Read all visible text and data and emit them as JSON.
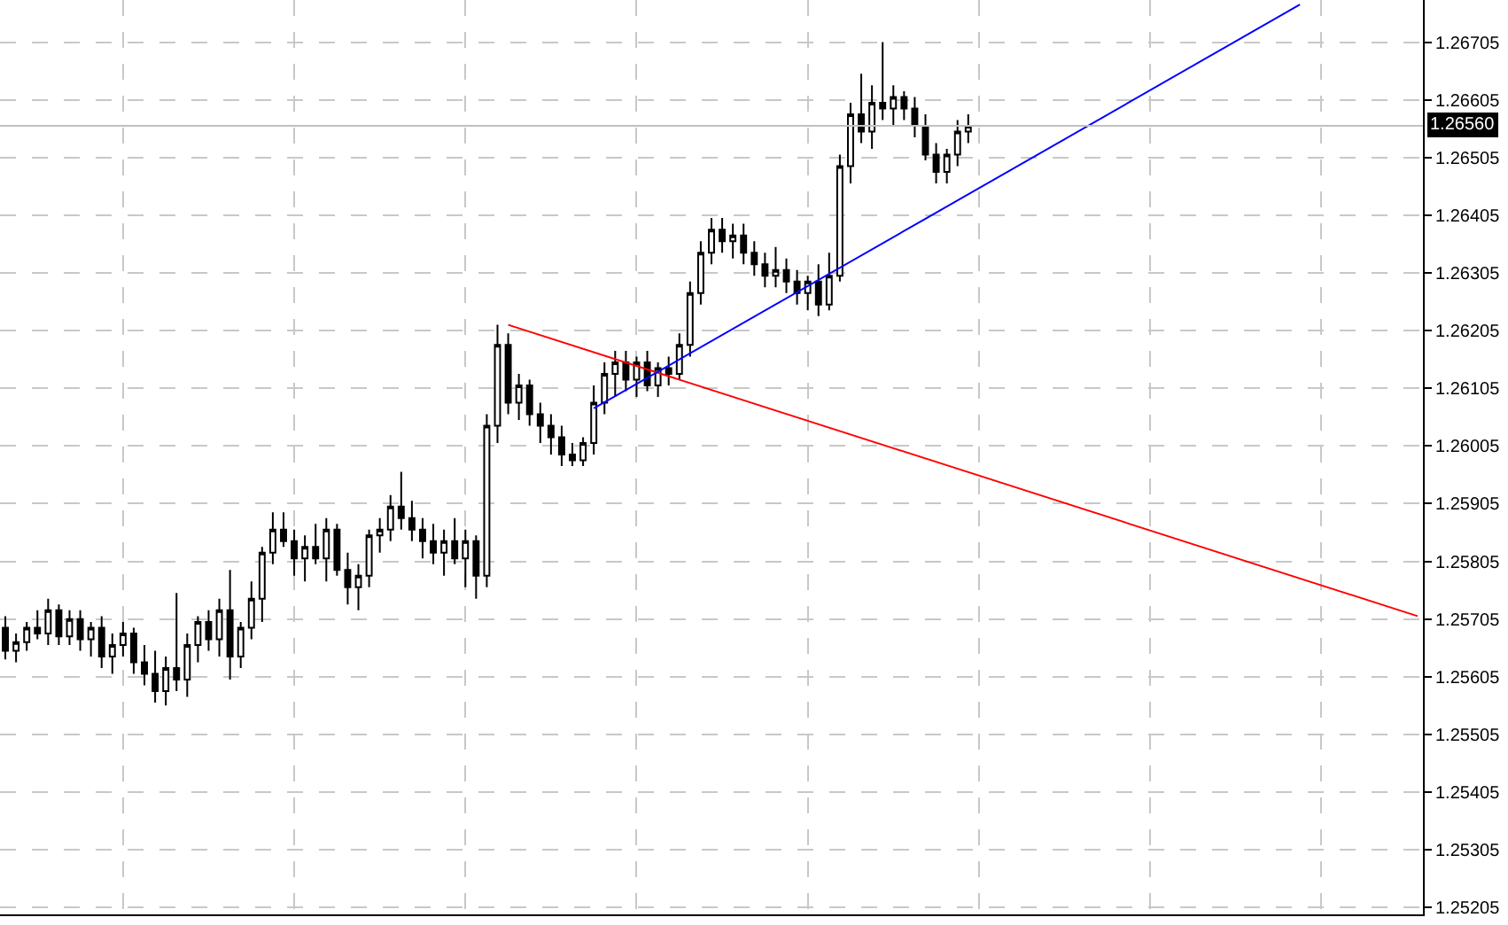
{
  "chart_data": {
    "type": "candlestick",
    "categories": [
      null,
      null,
      null,
      null,
      null,
      null,
      null,
      null,
      null,
      null,
      null,
      null,
      null,
      null,
      null,
      null,
      null,
      null,
      null,
      null,
      null,
      null,
      null,
      null,
      null,
      null,
      null,
      null,
      null,
      null,
      null,
      null,
      null,
      null,
      null,
      null,
      null,
      null,
      null,
      null,
      null,
      null,
      null,
      null,
      null,
      null,
      null,
      null,
      null,
      null,
      null,
      null,
      null,
      null,
      null,
      null,
      null,
      null,
      null,
      null,
      null,
      null,
      null,
      null,
      null,
      null,
      null,
      null,
      null,
      null,
      null,
      null,
      null,
      null,
      null,
      null,
      null,
      null,
      null,
      null,
      null,
      null,
      null,
      null,
      null,
      null,
      null,
      null,
      null,
      null,
      null,
      null,
      null,
      null,
      null,
      null,
      null,
      null,
      null,
      null,
      null,
      null,
      null,
      null,
      null,
      null,
      null,
      null,
      null,
      null,
      null,
      null,
      null,
      null,
      null,
      null,
      null,
      null,
      null,
      null,
      null,
      null,
      null,
      null,
      null,
      null,
      null,
      null,
      null,
      null,
      null,
      null,
      null
    ],
    "ohlc": [
      [
        1.2569,
        1.2571,
        1.25635,
        1.2565
      ],
      [
        1.2565,
        1.2568,
        1.2563,
        1.25665
      ],
      [
        1.25665,
        1.257,
        1.2565,
        1.2569
      ],
      [
        1.2569,
        1.2572,
        1.2567,
        1.2568
      ],
      [
        1.2568,
        1.2574,
        1.2566,
        1.2572
      ],
      [
        1.2572,
        1.2573,
        1.2566,
        1.25675
      ],
      [
        1.25675,
        1.2572,
        1.2566,
        1.25705
      ],
      [
        1.25705,
        1.2572,
        1.2565,
        1.2567
      ],
      [
        1.2567,
        1.257,
        1.2564,
        1.2569
      ],
      [
        1.2569,
        1.2571,
        1.2562,
        1.2564
      ],
      [
        1.2564,
        1.2568,
        1.2561,
        1.2566
      ],
      [
        1.2566,
        1.257,
        1.2564,
        1.2568
      ],
      [
        1.2568,
        1.2569,
        1.2561,
        1.2563
      ],
      [
        1.2563,
        1.2566,
        1.2559,
        1.2561
      ],
      [
        1.2561,
        1.2565,
        1.2556,
        1.2558
      ],
      [
        1.2558,
        1.2564,
        1.25555,
        1.2562
      ],
      [
        1.2562,
        1.2575,
        1.2558,
        1.256
      ],
      [
        1.256,
        1.2568,
        1.2557,
        1.2566
      ],
      [
        1.2566,
        1.2571,
        1.2563,
        1.257
      ],
      [
        1.257,
        1.2572,
        1.2565,
        1.2567
      ],
      [
        1.2567,
        1.2574,
        1.2564,
        1.2572
      ],
      [
        1.2572,
        1.2579,
        1.256,
        1.2564
      ],
      [
        1.2564,
        1.257,
        1.2562,
        1.2569
      ],
      [
        1.2569,
        1.2577,
        1.2567,
        1.2574
      ],
      [
        1.2574,
        1.2583,
        1.257,
        1.2582
      ],
      [
        1.2582,
        1.2589,
        1.258,
        1.2586
      ],
      [
        1.2586,
        1.2589,
        1.2583,
        1.2584
      ],
      [
        1.2584,
        1.2586,
        1.2578,
        1.2581
      ],
      [
        1.2581,
        1.2585,
        1.2577,
        1.2583
      ],
      [
        1.2583,
        1.2587,
        1.258,
        1.2581
      ],
      [
        1.2581,
        1.2588,
        1.2577,
        1.2586
      ],
      [
        1.2586,
        1.2587,
        1.2578,
        1.2579
      ],
      [
        1.2579,
        1.2582,
        1.2573,
        1.2576
      ],
      [
        1.2576,
        1.258,
        1.2572,
        1.2578
      ],
      [
        1.2578,
        1.2586,
        1.2576,
        1.2585
      ],
      [
        1.2585,
        1.2588,
        1.2582,
        1.2586
      ],
      [
        1.2586,
        1.2592,
        1.2584,
        1.259
      ],
      [
        1.259,
        1.2596,
        1.2586,
        1.2588
      ],
      [
        1.2588,
        1.2591,
        1.2584,
        1.2586
      ],
      [
        1.2586,
        1.2588,
        1.2581,
        1.2584
      ],
      [
        1.2584,
        1.2587,
        1.258,
        1.2582
      ],
      [
        1.2582,
        1.2586,
        1.2578,
        1.2584
      ],
      [
        1.2584,
        1.2588,
        1.258,
        1.2581
      ],
      [
        1.2581,
        1.2586,
        1.2576,
        1.2584
      ],
      [
        1.2584,
        1.2585,
        1.2574,
        1.2578
      ],
      [
        1.2578,
        1.2606,
        1.2576,
        1.2604
      ],
      [
        1.2604,
        1.26215,
        1.2601,
        1.2618
      ],
      [
        1.2618,
        1.262,
        1.2606,
        1.2608
      ],
      [
        1.2608,
        1.2613,
        1.2605,
        1.2611
      ],
      [
        1.2611,
        1.2612,
        1.2604,
        1.2606
      ],
      [
        1.2606,
        1.2608,
        1.2601,
        1.2604
      ],
      [
        1.2604,
        1.2606,
        1.2599,
        1.2602
      ],
      [
        1.2602,
        1.2604,
        1.2597,
        1.2599
      ],
      [
        1.2599,
        1.2601,
        1.2597,
        1.2598
      ],
      [
        1.2598,
        1.2602,
        1.2597,
        1.2601
      ],
      [
        1.2601,
        1.2611,
        1.2599,
        1.2608
      ],
      [
        1.2608,
        1.2615,
        1.2606,
        1.2613
      ],
      [
        1.2613,
        1.2617,
        1.2609,
        1.2615
      ],
      [
        1.2615,
        1.2617,
        1.261,
        1.2612
      ],
      [
        1.2612,
        1.2616,
        1.2609,
        1.2615
      ],
      [
        1.2615,
        1.2617,
        1.261,
        1.2611
      ],
      [
        1.2611,
        1.2615,
        1.2609,
        1.2614
      ],
      [
        1.2614,
        1.2616,
        1.2611,
        1.2613
      ],
      [
        1.2613,
        1.262,
        1.2612,
        1.2618
      ],
      [
        1.2618,
        1.2629,
        1.2616,
        1.2627
      ],
      [
        1.2627,
        1.2636,
        1.2625,
        1.2634
      ],
      [
        1.2634,
        1.264,
        1.2632,
        1.2638
      ],
      [
        1.2638,
        1.264,
        1.2634,
        1.2636
      ],
      [
        1.2636,
        1.2639,
        1.2633,
        1.2637
      ],
      [
        1.2637,
        1.2639,
        1.2632,
        1.2634
      ],
      [
        1.2634,
        1.2636,
        1.263,
        1.2632
      ],
      [
        1.2632,
        1.2634,
        1.2628,
        1.263
      ],
      [
        1.263,
        1.2635,
        1.2628,
        1.2631
      ],
      [
        1.2631,
        1.2633,
        1.2627,
        1.2629
      ],
      [
        1.2629,
        1.2631,
        1.2625,
        1.2627
      ],
      [
        1.2627,
        1.263,
        1.2624,
        1.2629
      ],
      [
        1.2629,
        1.2632,
        1.2623,
        1.2625
      ],
      [
        1.2625,
        1.2634,
        1.2624,
        1.263
      ],
      [
        1.263,
        1.2651,
        1.2629,
        1.2649
      ],
      [
        1.2649,
        1.266,
        1.2646,
        1.2658
      ],
      [
        1.2658,
        1.2665,
        1.2653,
        1.2655
      ],
      [
        1.2655,
        1.2663,
        1.2652,
        1.266
      ],
      [
        1.266,
        1.26705,
        1.2657,
        1.2659
      ],
      [
        1.2659,
        1.2663,
        1.2656,
        1.2661
      ],
      [
        1.2661,
        1.2662,
        1.2657,
        1.2659
      ],
      [
        1.2659,
        1.2661,
        1.2654,
        1.2656
      ],
      [
        1.2656,
        1.2658,
        1.265,
        1.2651
      ],
      [
        1.2651,
        1.2653,
        1.2646,
        1.2648
      ],
      [
        1.2648,
        1.2652,
        1.2646,
        1.2651
      ],
      [
        1.2651,
        1.2657,
        1.2649,
        1.2655
      ],
      [
        1.2655,
        1.2658,
        1.2653,
        1.2656
      ],
      null,
      null,
      null,
      null,
      null,
      null,
      null,
      null,
      null,
      null,
      null,
      null,
      null,
      null,
      null,
      null,
      null,
      null,
      null,
      null,
      null,
      null,
      null,
      null,
      null,
      null,
      null,
      null,
      null,
      null,
      null,
      null,
      null,
      null,
      null,
      null,
      null,
      null,
      null,
      null,
      null,
      null
    ],
    "series": [
      {
        "type": "line",
        "color": "#ff0000",
        "values": [
          null,
          null,
          null,
          null,
          null,
          null,
          null,
          null,
          null,
          null,
          null,
          null,
          null,
          null,
          null,
          null,
          null,
          null,
          null,
          null,
          null,
          null,
          null,
          null,
          null,
          null,
          null,
          null,
          null,
          null,
          null,
          null,
          null,
          null,
          null,
          null,
          null,
          null,
          null,
          null,
          null,
          null,
          null,
          null,
          null,
          null,
          null,
          1.26215,
          null,
          null,
          null,
          null,
          null,
          null,
          null,
          null,
          null,
          null,
          null,
          null,
          null,
          null,
          null,
          null,
          null,
          null,
          null,
          null,
          null,
          null,
          null,
          null,
          null,
          null,
          null,
          null,
          null,
          null,
          null,
          null,
          null,
          null,
          null,
          null,
          null,
          null,
          null,
          null,
          null,
          null,
          null,
          null,
          null,
          null,
          null,
          null,
          null,
          null,
          null,
          null,
          null,
          null,
          null,
          null,
          null,
          null,
          null,
          null,
          null,
          null,
          null,
          null,
          null,
          null,
          null,
          null,
          null,
          null,
          null,
          null,
          null,
          null,
          null,
          null,
          null,
          null,
          null,
          null,
          null,
          null,
          null,
          null,
          1.2571
        ]
      },
      {
        "type": "line",
        "color": "#0000ff",
        "values": [
          null,
          null,
          null,
          null,
          null,
          null,
          null,
          null,
          null,
          null,
          null,
          null,
          null,
          null,
          null,
          null,
          null,
          null,
          null,
          null,
          null,
          null,
          null,
          null,
          null,
          null,
          null,
          null,
          null,
          null,
          null,
          null,
          null,
          null,
          null,
          null,
          null,
          null,
          null,
          null,
          null,
          null,
          null,
          null,
          null,
          null,
          null,
          null,
          null,
          null,
          null,
          null,
          null,
          null,
          null,
          1.2607,
          null,
          null,
          null,
          null,
          null,
          null,
          null,
          null,
          null,
          null,
          null,
          null,
          null,
          null,
          null,
          null,
          null,
          null,
          null,
          null,
          null,
          null,
          null,
          null,
          null,
          null,
          null,
          null,
          null,
          null,
          null,
          null,
          null,
          null,
          null,
          null,
          null,
          null,
          null,
          null,
          null,
          null,
          null,
          null,
          null,
          null,
          null,
          null,
          null,
          null,
          null,
          null,
          null,
          null,
          null,
          null,
          null,
          null,
          null,
          null,
          null,
          null,
          null,
          null,
          null,
          1.2677,
          null,
          null,
          null,
          null,
          null,
          null,
          null,
          null,
          null,
          null,
          null
        ]
      }
    ],
    "ylim": [
      1.25193,
      1.26778
    ],
    "yticks": [
      1.25205,
      1.25305,
      1.25405,
      1.25505,
      1.25605,
      1.25705,
      1.25805,
      1.25905,
      1.26005,
      1.26105,
      1.26205,
      1.26305,
      1.26405,
      1.26505,
      1.26605,
      1.26705
    ],
    "ref_lines": [
      {
        "axis": "y",
        "value": 1.2656,
        "label": "1.26560",
        "color": "#c0c0c0"
      }
    ],
    "grid": true,
    "tick_labels": "y"
  }
}
